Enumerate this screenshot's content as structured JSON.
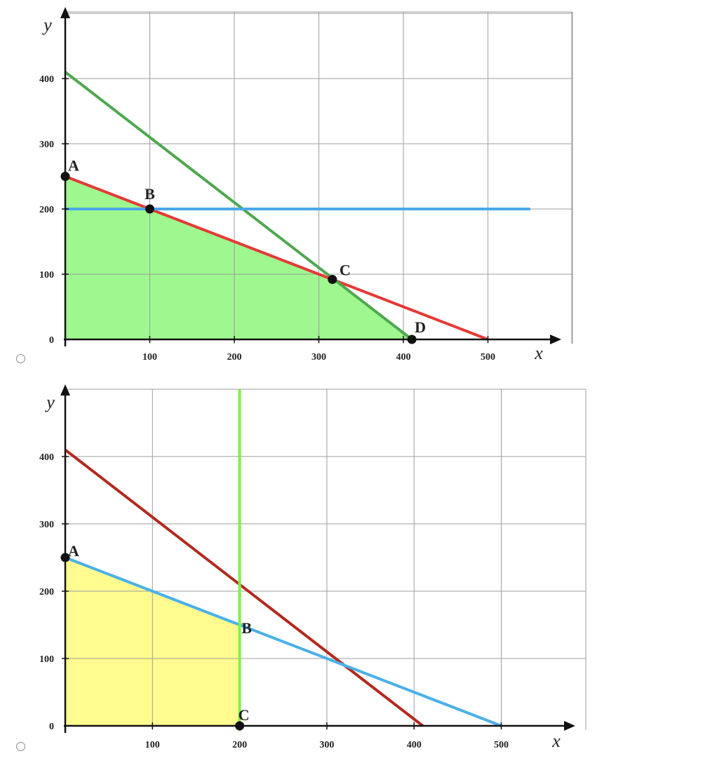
{
  "options": [
    {
      "xlabel": "x",
      "ylabel": "y",
      "chart_data": {
        "type": "line",
        "xlabel": "x",
        "ylabel": "y",
        "xlim": [
          0,
          600
        ],
        "ylim": [
          0,
          500
        ],
        "xticks": [
          100,
          200,
          300,
          400,
          500
        ],
        "yticks": [
          0,
          100,
          200,
          300,
          400
        ],
        "grid": true,
        "feasible_region": {
          "color": "#9ef78f",
          "vertices": [
            [
              0,
              0
            ],
            [
              0,
              250
            ],
            [
              100,
              200
            ],
            [
              316,
              92
            ],
            [
              410,
              0
            ]
          ]
        },
        "lines": [
          {
            "color": "#e53935",
            "points": [
              [
                0,
                250
              ],
              [
                500,
                0
              ]
            ]
          },
          {
            "color": "#4fa84f",
            "points": [
              [
                0,
                410
              ],
              [
                410,
                0
              ]
            ]
          },
          {
            "color": "#4aa8e8",
            "points": [
              [
                0,
                200
              ],
              [
                550,
                200
              ]
            ]
          }
        ],
        "points": [
          {
            "label": "A",
            "x": 0,
            "y": 250
          },
          {
            "label": "B",
            "x": 100,
            "y": 200
          },
          {
            "label": "C",
            "x": 316,
            "y": 92
          },
          {
            "label": "D",
            "x": 410,
            "y": 0
          }
        ]
      }
    },
    {
      "xlabel": "x",
      "ylabel": "y",
      "chart_data": {
        "type": "line",
        "xlabel": "x",
        "ylabel": "y",
        "xlim": [
          0,
          600
        ],
        "ylim": [
          0,
          500
        ],
        "xticks": [
          100,
          200,
          300,
          400,
          500
        ],
        "yticks": [
          0,
          100,
          200,
          300,
          400
        ],
        "grid": true,
        "feasible_region": {
          "color": "#fffb8f",
          "vertices": [
            [
              0,
              0
            ],
            [
              0,
              250
            ],
            [
              200,
              150
            ],
            [
              200,
              0
            ]
          ]
        },
        "lines": [
          {
            "color": "#b22a1e",
            "points": [
              [
                0,
                410
              ],
              [
                410,
                0
              ]
            ]
          },
          {
            "color": "#4ab0ea",
            "points": [
              [
                0,
                250
              ],
              [
                500,
                0
              ]
            ]
          },
          {
            "color": "#7ef04a",
            "points": [
              [
                200,
                -8
              ],
              [
                200,
                500
              ]
            ]
          }
        ],
        "points": [
          {
            "label": "A",
            "x": 0,
            "y": 250
          },
          {
            "label": "B",
            "x": 200,
            "y": 150,
            "marker": false
          },
          {
            "label": "C",
            "x": 200,
            "y": 0
          }
        ]
      }
    }
  ]
}
